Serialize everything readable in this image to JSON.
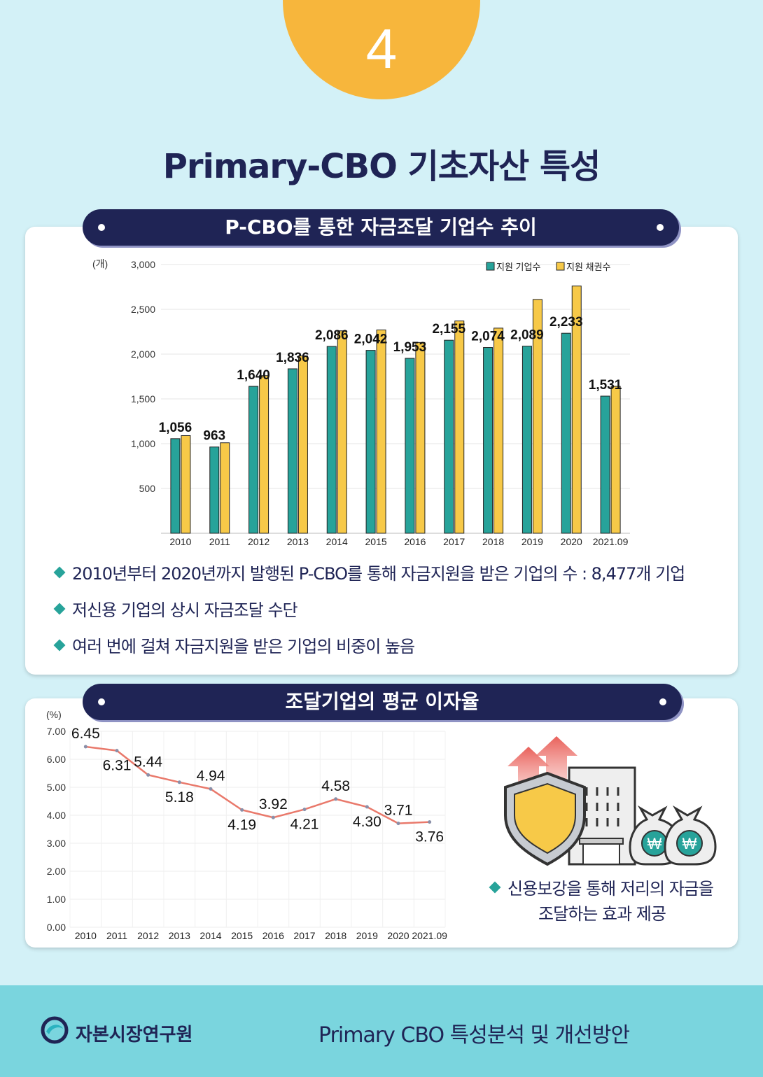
{
  "badge": "4",
  "title": "Primary-CBO 기초자산 특성",
  "section1": {
    "title": "P-CBO를 통한 자금조달 기업수 추이",
    "bullets": [
      "2010년부터 2020년까지 발행된 P-CBO를 통해 자금지원을 받은 기업의 수 : 8,477개 기업",
      "저신용 기업의 상시 자금조달 수단",
      "여러 번에 걸쳐 자금지원을 받은 기업의 비중이 높음"
    ]
  },
  "section2": {
    "title": "조달기업의 평균 이자율",
    "note_line1": "신용보강을 통해 저리의 자금을",
    "note_line2": "조달하는 효과 제공"
  },
  "chart_data": [
    {
      "type": "bar",
      "unit_label": "(개)",
      "categories": [
        "2010",
        "2011",
        "2012",
        "2013",
        "2014",
        "2015",
        "2016",
        "2017",
        "2018",
        "2019",
        "2020",
        "2021.09"
      ],
      "series": [
        {
          "name": "지원 기업수",
          "color": "#27a39a",
          "values": [
            1056,
            963,
            1640,
            1836,
            2086,
            2042,
            1953,
            2155,
            2074,
            2089,
            2233,
            1531
          ],
          "labels": [
            "1,056",
            "963",
            "1,640",
            "1,836",
            "2,086",
            "2,042",
            "1,953",
            "2,155",
            "2,074",
            "2,089",
            "2,233",
            "1,531"
          ]
        },
        {
          "name": "지원 채권수",
          "color": "#f7c948",
          "values": [
            1090,
            1010,
            1760,
            1980,
            2260,
            2270,
            2130,
            2370,
            2290,
            2610,
            2760,
            1640
          ]
        }
      ],
      "yticks": [
        "500",
        "1,000",
        "1,500",
        "2,000",
        "2,500",
        "3,000"
      ],
      "ytick_values": [
        500,
        1000,
        1500,
        2000,
        2500,
        3000
      ],
      "ylim": [
        0,
        3000
      ],
      "legend": "top-right",
      "grid": true
    },
    {
      "type": "line",
      "unit_label": "(%)",
      "categories": [
        "2010",
        "2011",
        "2012",
        "2013",
        "2014",
        "2015",
        "2016",
        "2017",
        "2018",
        "2019",
        "2020",
        "2021.09"
      ],
      "series": [
        {
          "color": "#e9796b",
          "values": [
            6.45,
            6.31,
            5.44,
            5.18,
            4.94,
            4.19,
            3.92,
            4.21,
            4.58,
            4.3,
            3.71,
            3.76
          ],
          "labels": [
            "6.45",
            "6.31",
            "5.44",
            "5.18",
            "4.94",
            "4.19",
            "3.92",
            "4.21",
            "4.58",
            "4.30",
            "3.71",
            "3.76"
          ]
        }
      ],
      "yticks": [
        "0.00",
        "1.00",
        "2.00",
        "3.00",
        "4.00",
        "5.00",
        "6.00",
        "7.00"
      ],
      "ytick_values": [
        0,
        1,
        2,
        3,
        4,
        5,
        6,
        7
      ],
      "ylim": [
        0,
        7
      ],
      "grid": true
    }
  ],
  "footer": {
    "org": "자본시장연구원",
    "doc": "Primary CBO 특성분석 및 개선방안"
  },
  "icon": {
    "currency": "₩"
  }
}
